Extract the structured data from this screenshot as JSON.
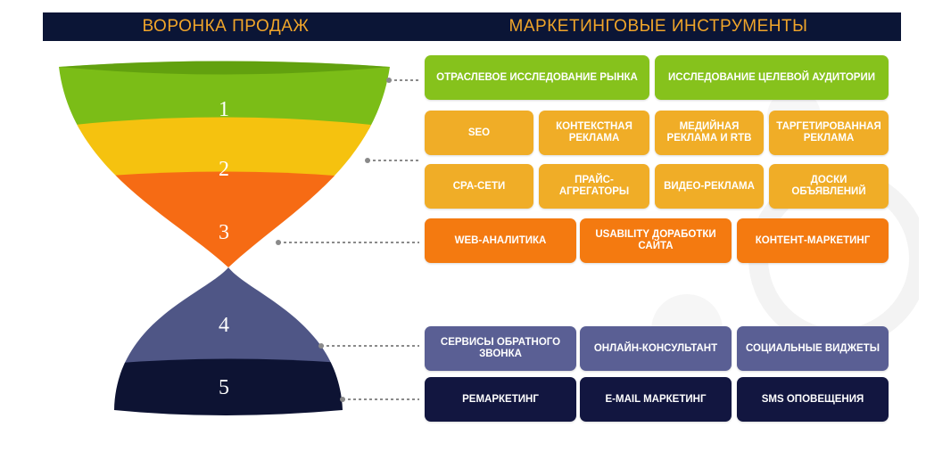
{
  "header": {
    "left_title": "ВОРОНКА ПРОДАЖ",
    "right_title": "МАРКЕТИНГОВЫЕ ИНСТРУМЕНТЫ"
  },
  "funnel": {
    "levels": [
      "1",
      "2",
      "3",
      "4",
      "5"
    ],
    "colors": [
      "#7bbd17",
      "#f5c20f",
      "#f66b14",
      "#4f5686",
      "#0d1333"
    ]
  },
  "tools": {
    "level1": [
      "ОТРАСЛЕВОЕ ИССЛЕДОВАНИЕ РЫНКА",
      "ИССЛЕДОВАНИЕ ЦЕЛЕВОЙ АУДИТОРИИ"
    ],
    "level2_row1": [
      "SEO",
      "КОНТЕКСТНАЯ РЕКЛАМА",
      "МЕДИЙНАЯ РЕКЛАМА И RTB",
      "ТАРГЕТИРОВАННАЯ РЕКЛАМА"
    ],
    "level2_row2": [
      "CPA-СЕТИ",
      "ПРАЙС-АГРЕГАТОРЫ",
      "ВИДЕО-РЕКЛАМА",
      "ДОСКИ ОБЪЯВЛЕНИЙ"
    ],
    "level3": [
      "WEB-АНАЛИТИКА",
      "USABILITY ДОРАБОТКИ САЙТА",
      "КОНТЕНТ-МАРКЕТИНГ"
    ],
    "level4": [
      "СЕРВИСЫ ОБРАТНОГО ЗВОНКА",
      "ОНЛАЙН-КОНСУЛЬТАНТ",
      "СОЦИАЛЬНЫЕ ВИДЖЕТЫ"
    ],
    "level5": [
      "РЕМАРКЕТИНГ",
      "E-MAIL МАРКЕТИНГ",
      "SMS ОПОВЕЩЕНИЯ"
    ]
  }
}
